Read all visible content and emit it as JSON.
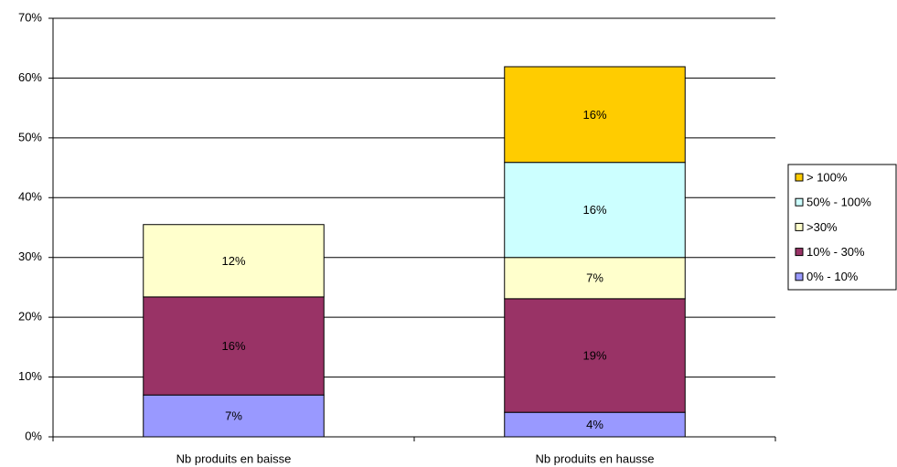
{
  "chart_data": {
    "type": "stacked_bar",
    "categories": [
      "Nb produits en baisse",
      "Nb produits en hausse"
    ],
    "series": [
      {
        "name": "0% - 10%",
        "color": "#9999ff",
        "values": [
          7,
          4.1
        ],
        "value_labels": [
          "7%",
          "4%"
        ]
      },
      {
        "name": "10% - 30%",
        "color": "#993366",
        "values": [
          16.4,
          19
        ],
        "value_labels": [
          "16%",
          "19%"
        ]
      },
      {
        "name": ">30%",
        "color": "#ffffcc",
        "values": [
          12.1,
          6.9
        ],
        "value_labels": [
          "12%",
          "7%"
        ]
      },
      {
        "name": "50% - 100%",
        "color": "#ccffff",
        "values": [
          null,
          15.9
        ],
        "value_labels": [
          null,
          "16%"
        ]
      },
      {
        "name": "> 100%",
        "color": "#ffcc00",
        "values": [
          null,
          16
        ],
        "value_labels": [
          null,
          "16%"
        ]
      }
    ],
    "ylim": [
      0,
      70
    ],
    "yticks": [
      {
        "value": 0,
        "label": "0%"
      },
      {
        "value": 10,
        "label": "10%"
      },
      {
        "value": 20,
        "label": "20%"
      },
      {
        "value": 30,
        "label": "30%"
      },
      {
        "value": 40,
        "label": "40%"
      },
      {
        "value": 50,
        "label": "50%"
      },
      {
        "value": 60,
        "label": "60%"
      },
      {
        "value": 70,
        "label": "70%"
      }
    ],
    "grid": true,
    "legend": "right"
  }
}
